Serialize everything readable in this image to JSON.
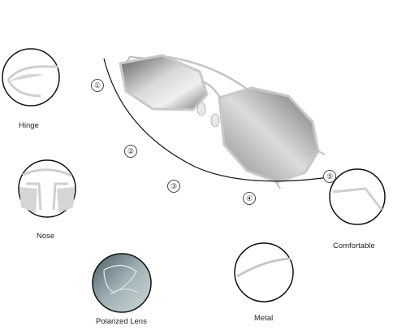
{
  "callouts": {
    "hinge": "Hinge",
    "nose": "Nose",
    "comfortable": "Comfortable",
    "polarized": "Polarized Lens",
    "metal": "Metal"
  },
  "numbers": [
    "①",
    "②",
    "③",
    "④",
    "⑤"
  ],
  "colors": {
    "frame": "#c9c9c9",
    "lens_dark": "#6a6a6a",
    "lens_light": "#e6e6e6",
    "outline": "#111111"
  }
}
